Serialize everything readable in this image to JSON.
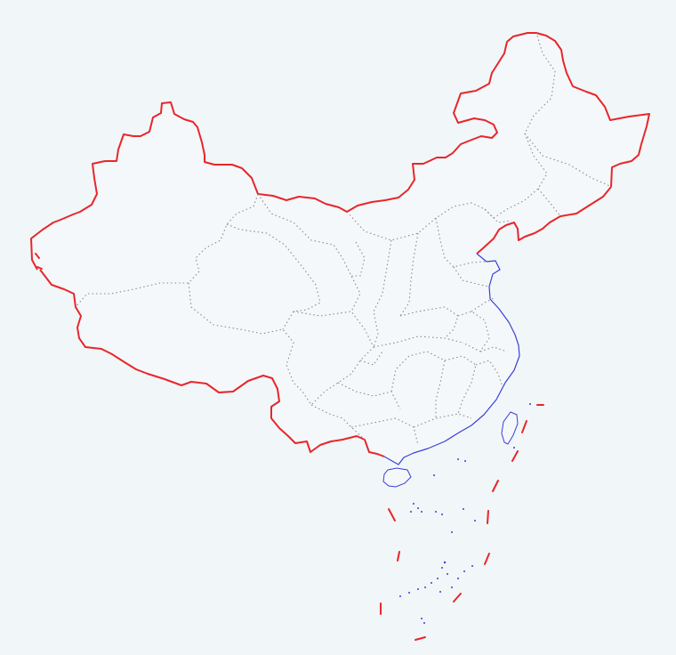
{
  "map": {
    "background": "#f1f6f8",
    "land_fill": "#f4f8fa",
    "colors": {
      "national_border": "#e8262b",
      "coastline": "#3b3fd8",
      "provincial_border": "#8a8a8a",
      "maritime_line": "#e8262b",
      "islands": "#3b3fd8"
    },
    "layers": [
      "national-border",
      "coastline",
      "provincial-borders",
      "maritime-boundary-dashes",
      "island-dots"
    ]
  }
}
